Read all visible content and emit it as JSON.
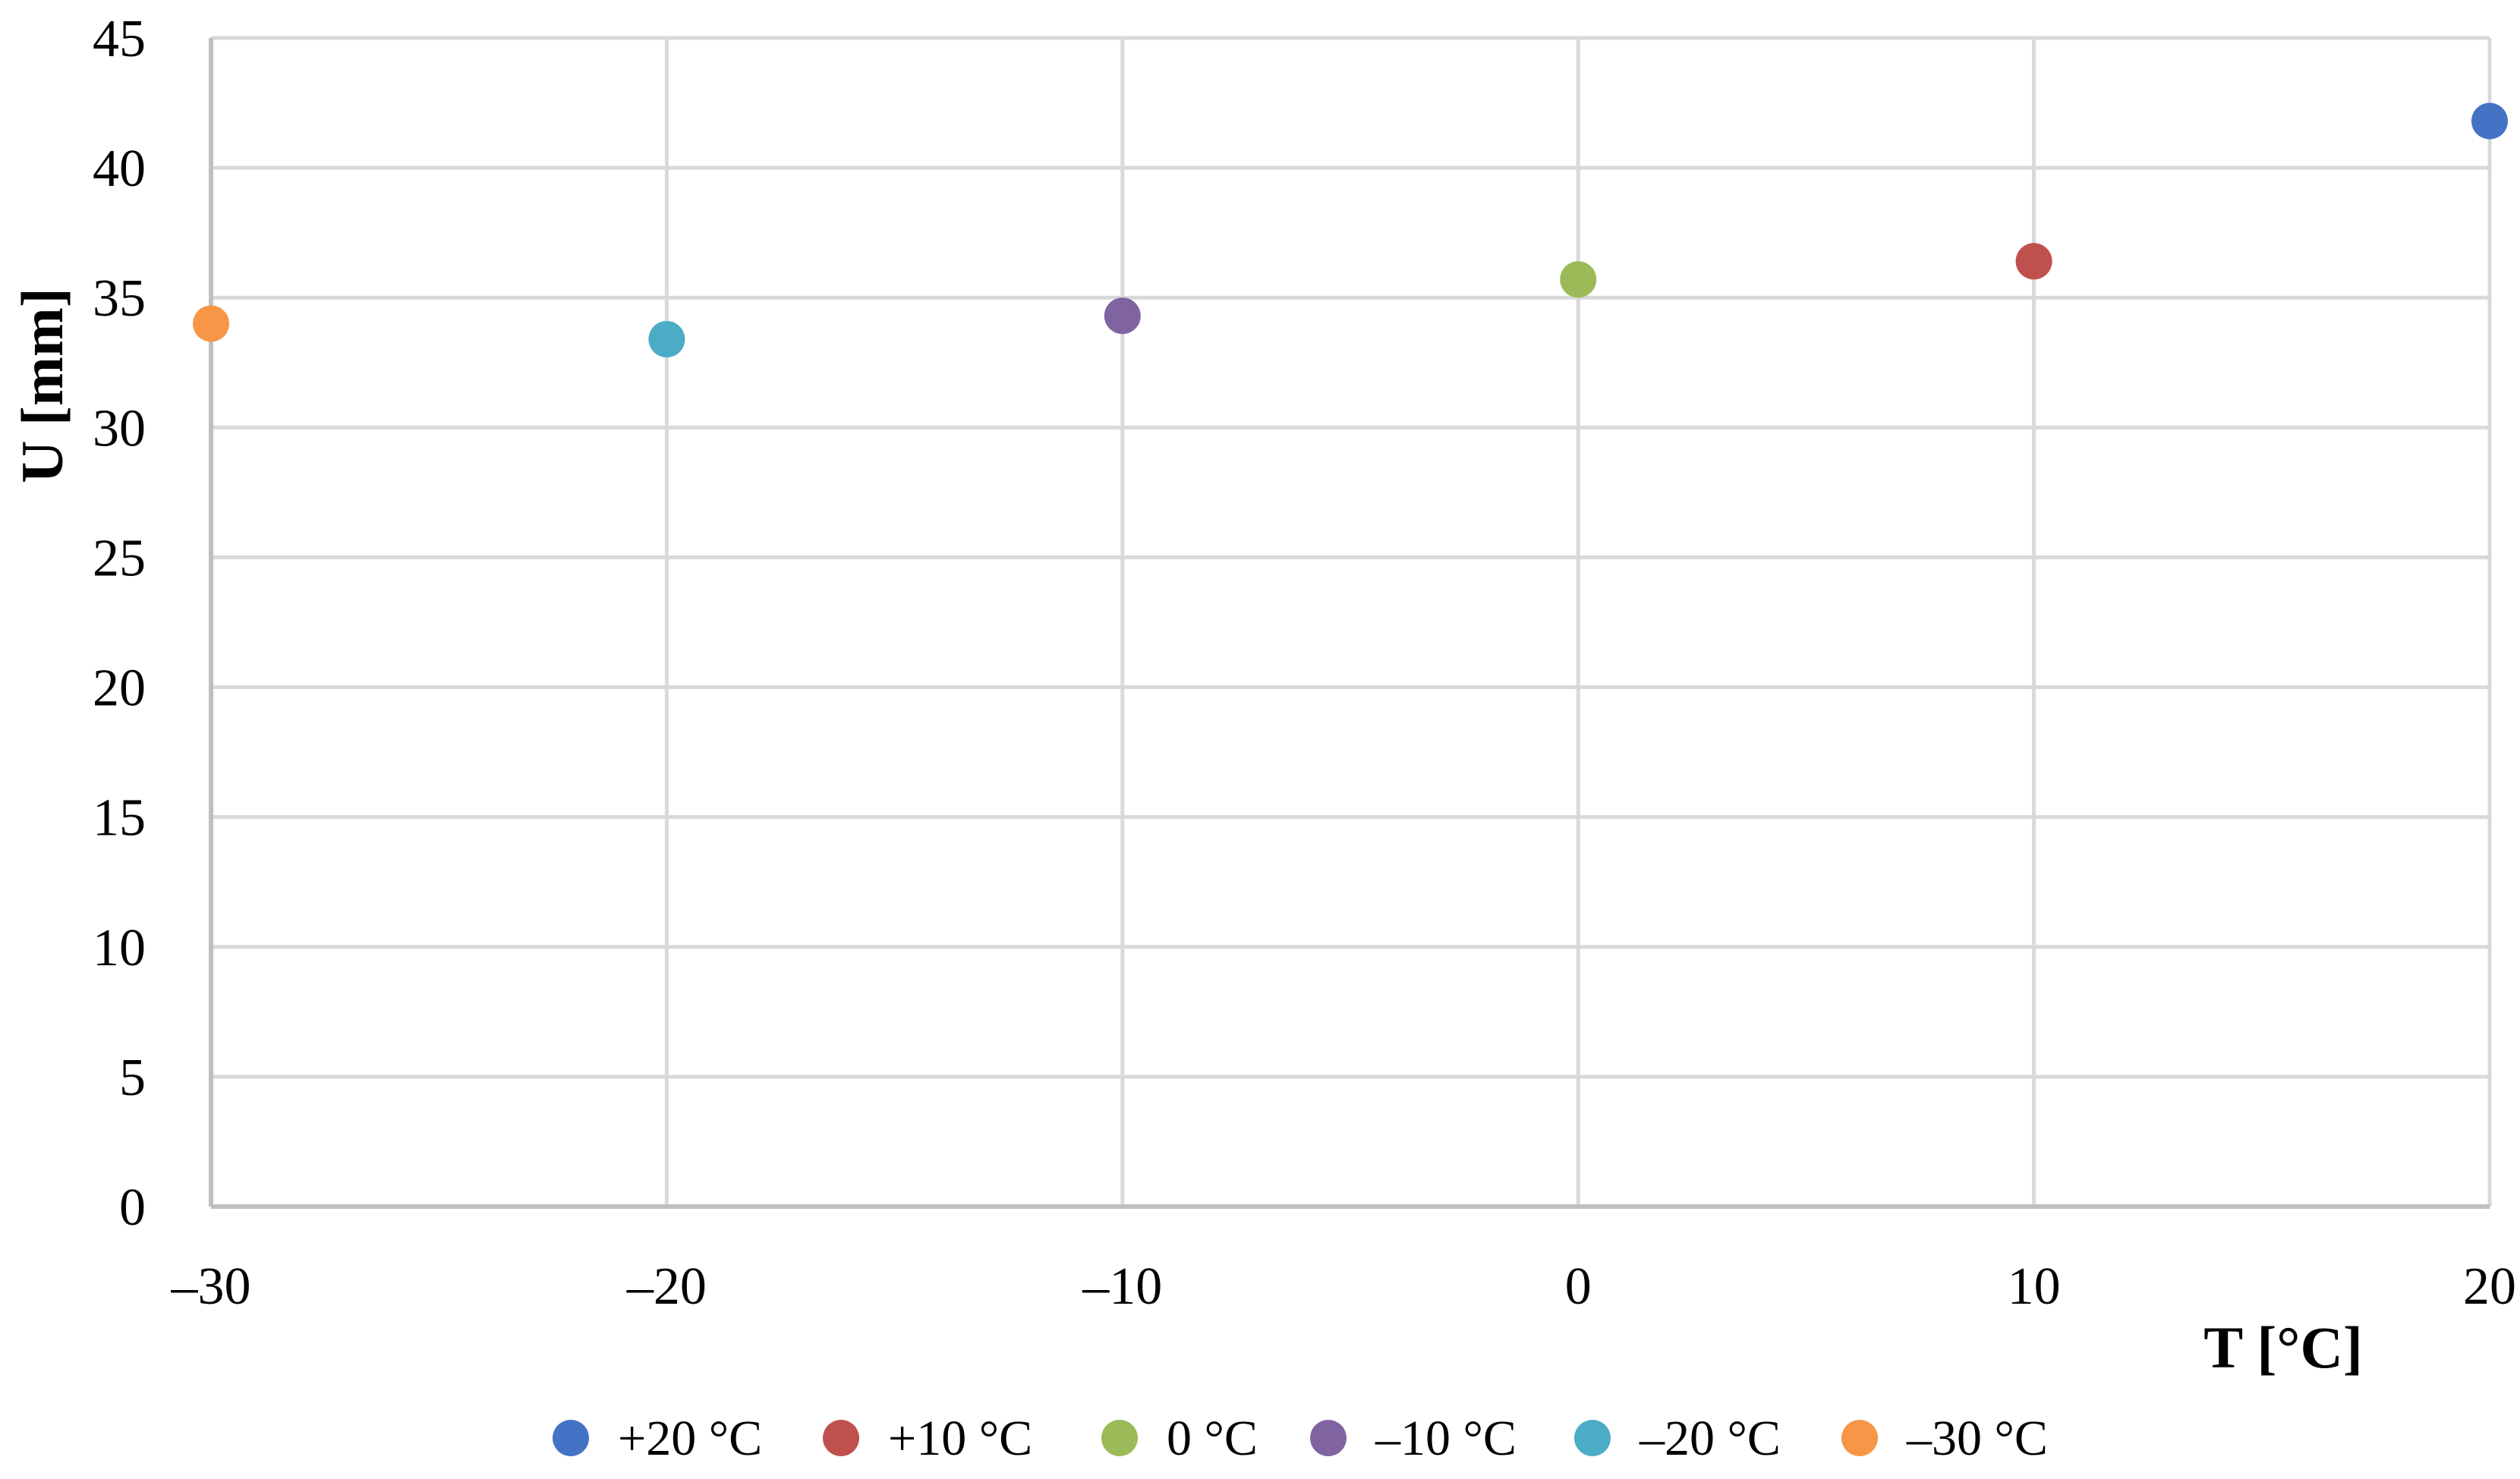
{
  "chart_data": {
    "type": "scatter",
    "xlabel": "T [°C]",
    "ylabel": "U [mm]",
    "xlim": [
      -30,
      20
    ],
    "ylim": [
      0,
      45
    ],
    "x_ticks": [
      -30,
      -20,
      -10,
      0,
      10,
      20
    ],
    "x_tick_labels": [
      "–30",
      "–20",
      "–10",
      "0",
      "10",
      "20"
    ],
    "y_ticks": [
      0,
      5,
      10,
      15,
      20,
      25,
      30,
      35,
      40,
      45
    ],
    "y_tick_labels": [
      "0",
      "5",
      "10",
      "15",
      "20",
      "25",
      "30",
      "35",
      "40",
      "45"
    ],
    "grid": true,
    "legend_position": "bottom",
    "series": [
      {
        "name": "+20 °C",
        "color": "#4472C4",
        "points": [
          {
            "x": 20,
            "y": 41.8
          }
        ]
      },
      {
        "name": "+10 °C",
        "color": "#C0504D",
        "points": [
          {
            "x": 10,
            "y": 36.4
          }
        ]
      },
      {
        "name": "0 °C",
        "color": "#9BBB59",
        "points": [
          {
            "x": 0,
            "y": 35.7
          }
        ]
      },
      {
        "name": "–10 °C",
        "color": "#8064A2",
        "points": [
          {
            "x": -10,
            "y": 34.3
          }
        ]
      },
      {
        "name": "–20 °C",
        "color": "#4BACC6",
        "points": [
          {
            "x": -20,
            "y": 33.4
          }
        ]
      },
      {
        "name": "–30 °C",
        "color": "#F79646",
        "points": [
          {
            "x": -30,
            "y": 34.0
          }
        ]
      }
    ]
  }
}
